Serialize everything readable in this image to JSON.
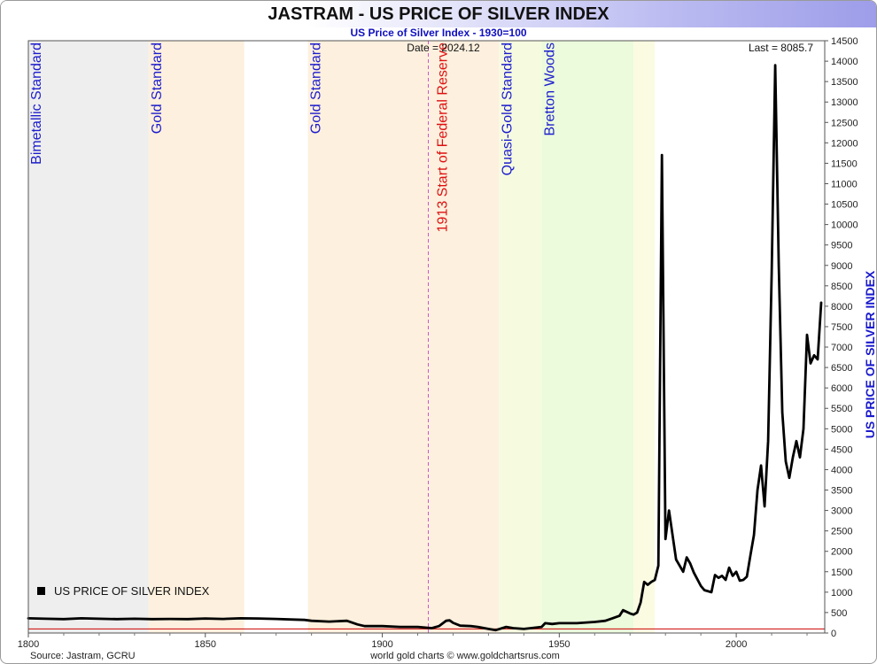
{
  "header": {
    "title": "JASTRAM - US PRICE OF SILVER INDEX",
    "subtitle": "US Price of Silver Index - 1930=100"
  },
  "footer": {
    "source": "Source: Jastram, GCRU",
    "credit": "world gold charts © www.goldchartsrus.com"
  },
  "chart_data": {
    "type": "line",
    "title": "JASTRAM - US PRICE OF SILVER INDEX",
    "subtitle": "US Price of Silver Index - 1930=100",
    "xlabel": "",
    "ylabel": "US PRICE OF SILVER INDEX",
    "xlim": [
      1800,
      2025
    ],
    "ylim": [
      0,
      14500
    ],
    "x_ticks": [
      1800,
      1850,
      1900,
      1950,
      2000
    ],
    "y_ticks": [
      0,
      500,
      1000,
      1500,
      2000,
      2500,
      3000,
      3500,
      4000,
      4500,
      5000,
      5500,
      6000,
      6500,
      7000,
      7500,
      8000,
      8500,
      9000,
      9500,
      10000,
      10500,
      11000,
      11500,
      12000,
      12500,
      13000,
      13500,
      14000,
      14500
    ],
    "grid": false,
    "legend": {
      "position": "bottom-left",
      "entries": [
        "US PRICE OF SILVER INDEX"
      ]
    },
    "annotations": {
      "date": "Date = 2024.12",
      "last": "Last = 8085.7"
    },
    "eras": [
      {
        "label": "Bimetallic Standard",
        "start": 1800,
        "end": 1834,
        "color": "#eeeeee"
      },
      {
        "label": "Gold Standard",
        "start": 1834,
        "end": 1861,
        "color": "#fdf0de"
      },
      {
        "label": "Gold Standard",
        "start": 1879,
        "end": 1933,
        "color": "#fdf0de"
      },
      {
        "label": "Quasi-Gold Standard",
        "start": 1933,
        "end": 1945,
        "color": "#f6fbe0"
      },
      {
        "label": "Bretton Woods",
        "start": 1945,
        "end": 1971,
        "color": "#ebfbdc"
      },
      {
        "label": "",
        "start": 1971,
        "end": 1977,
        "color": "#fbfbe2"
      }
    ],
    "fed_line": {
      "label": "1913 Start of Federal Reserve",
      "x": 1913,
      "color": "#dd1111"
    },
    "baseline": {
      "y": 100,
      "color": "#cc0000"
    },
    "series": [
      {
        "name": "US PRICE OF SILVER INDEX",
        "color": "#000000",
        "x": [
          1800,
          1805,
          1810,
          1815,
          1820,
          1825,
          1830,
          1835,
          1840,
          1845,
          1850,
          1855,
          1860,
          1865,
          1870,
          1875,
          1878,
          1880,
          1885,
          1890,
          1893,
          1895,
          1900,
          1905,
          1910,
          1914,
          1916,
          1918,
          1919,
          1920,
          1922,
          1925,
          1927,
          1930,
          1932,
          1935,
          1937,
          1940,
          1945,
          1946,
          1948,
          1950,
          1955,
          1960,
          1963,
          1965,
          1967,
          1968,
          1970,
          1971,
          1972,
          1973,
          1974,
          1975,
          1976,
          1977,
          1978,
          1979,
          1980,
          1981,
          1982,
          1983,
          1985,
          1986,
          1987,
          1988,
          1990,
          1991,
          1993,
          1994,
          1995,
          1996,
          1997,
          1998,
          1999,
          2000,
          2001,
          2002,
          2003,
          2004,
          2005,
          2006,
          2007,
          2008,
          2009,
          2010,
          2011,
          2012,
          2013,
          2014,
          2015,
          2016,
          2017,
          2018,
          2019,
          2020,
          2021,
          2022,
          2023,
          2024
        ],
        "y": [
          360,
          350,
          340,
          360,
          350,
          340,
          350,
          340,
          345,
          340,
          355,
          345,
          360,
          355,
          345,
          330,
          320,
          300,
          280,
          300,
          210,
          170,
          170,
          150,
          150,
          120,
          170,
          300,
          310,
          250,
          180,
          170,
          150,
          100,
          70,
          150,
          120,
          100,
          150,
          240,
          220,
          240,
          240,
          270,
          300,
          360,
          420,
          560,
          480,
          450,
          500,
          750,
          1250,
          1180,
          1250,
          1300,
          1650,
          11700,
          2300,
          3000,
          2400,
          1800,
          1500,
          1850,
          1700,
          1480,
          1150,
          1050,
          1000,
          1420,
          1350,
          1400,
          1300,
          1600,
          1400,
          1500,
          1280,
          1300,
          1380,
          1900,
          2400,
          3500,
          4100,
          3100,
          4700,
          8800,
          13900,
          9000,
          5400,
          4200,
          3800,
          4300,
          4700,
          4300,
          5000,
          7300,
          6600,
          6800,
          6700,
          8085.7
        ]
      }
    ]
  }
}
